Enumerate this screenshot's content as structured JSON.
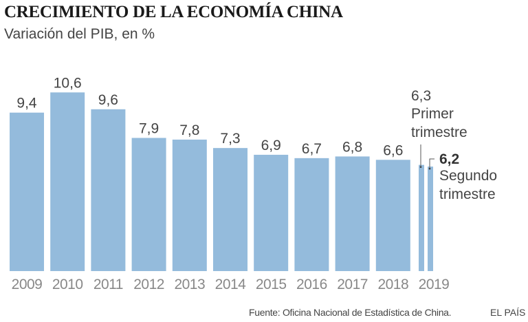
{
  "chart_data": {
    "type": "bar",
    "title": "CRECIMIENTO DE LA ECONOMÍA CHINA",
    "subtitle": "Variación del PIB, en %",
    "categories": [
      "2009",
      "2010",
      "2011",
      "2012",
      "2013",
      "2014",
      "2015",
      "2016",
      "2017",
      "2018",
      "2019"
    ],
    "values": [
      9.4,
      10.6,
      9.6,
      7.9,
      7.8,
      7.3,
      6.9,
      6.7,
      6.8,
      6.6,
      null
    ],
    "labels": [
      "9,4",
      "10,6",
      "9,6",
      "7,9",
      "7,8",
      "7,3",
      "6,9",
      "6,7",
      "6,8",
      "6,6"
    ],
    "quarters_2019": [
      {
        "value": 6.3,
        "label": "6,3",
        "line1": "Primer",
        "line2": "trimestre"
      },
      {
        "value": 6.2,
        "label": "6,2",
        "line1": "Segundo",
        "line2": "trimestre"
      }
    ],
    "ylim": [
      0,
      10.6
    ],
    "grid": false,
    "xlabel": "",
    "ylabel": "",
    "bar_color": "#94bbdc"
  },
  "footer": {
    "source": "Fuente: Oficina Nacional de Estadística de China.",
    "brand": "EL PAÍS"
  }
}
